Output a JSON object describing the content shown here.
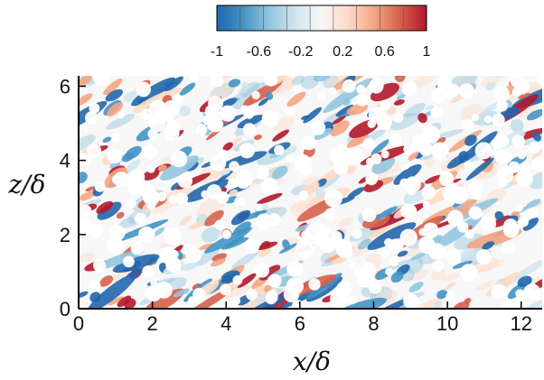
{
  "chart_data": {
    "type": "heatmap",
    "xlabel": "x/δ",
    "ylabel": "z/δ",
    "xlim": [
      0,
      12.57
    ],
    "ylim": [
      0,
      6.28
    ],
    "x_ticks": [
      0,
      2,
      4,
      6,
      8,
      10,
      12
    ],
    "y_ticks": [
      0,
      2,
      4,
      6
    ],
    "grid": false,
    "colorbar": {
      "placement": "top",
      "range": [
        -1,
        1
      ],
      "tick_labels": [
        "-1",
        "-0.6",
        "-0.2",
        "0.2",
        "0.6",
        "1"
      ],
      "colors": [
        "#2166ac",
        "#4393c3",
        "#92c5de",
        "#d1e5f0",
        "#f7f7f7",
        "#fddbc7",
        "#f4a582",
        "#d6604d",
        "#b2182b"
      ]
    }
  }
}
